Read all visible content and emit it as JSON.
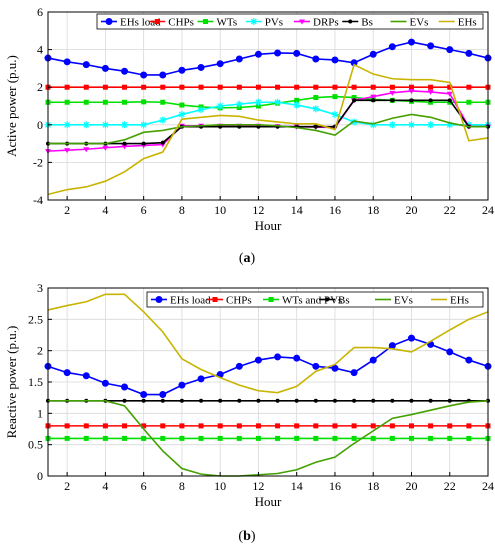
{
  "panels": [
    {
      "label": "(a)",
      "chart_data": {
        "type": "line",
        "xlabel": "Hour",
        "ylabel": "Active power (p.u.)",
        "xlim": [
          1,
          24
        ],
        "ylim": [
          -4,
          6
        ],
        "xticks": [
          2,
          4,
          6,
          8,
          10,
          12,
          14,
          16,
          18,
          20,
          22,
          24
        ],
        "yticks": [
          -4,
          -2,
          0,
          2,
          4,
          6
        ],
        "grid": true,
        "legend": "top",
        "x": [
          1,
          2,
          3,
          4,
          5,
          6,
          7,
          8,
          9,
          10,
          11,
          12,
          13,
          14,
          15,
          16,
          17,
          18,
          19,
          20,
          21,
          22,
          23,
          24
        ],
        "series": [
          {
            "name": "EHs load",
            "color": "#0000ff",
            "marker": "circle",
            "values": [
              3.55,
              3.35,
              3.2,
              3.0,
              2.85,
              2.65,
              2.65,
              2.9,
              3.05,
              3.25,
              3.5,
              3.75,
              3.82,
              3.8,
              3.5,
              3.45,
              3.3,
              3.75,
              4.15,
              4.4,
              4.2,
              4.0,
              3.8,
              3.55
            ]
          },
          {
            "name": "CHPs",
            "color": "#ff0000",
            "marker": "square",
            "values": [
              2,
              2,
              2,
              2,
              2,
              2,
              2,
              2,
              2,
              2,
              2,
              2,
              2,
              2,
              2,
              2,
              2,
              2,
              2,
              2,
              2,
              2,
              2,
              2
            ]
          },
          {
            "name": "WTs",
            "color": "#00e000",
            "marker": "square",
            "values": [
              1.2,
              1.2,
              1.2,
              1.2,
              1.2,
              1.22,
              1.2,
              1.05,
              0.95,
              0.9,
              0.92,
              1.0,
              1.15,
              1.3,
              1.45,
              1.5,
              1.45,
              1.35,
              1.3,
              1.25,
              1.2,
              1.2,
              1.2,
              1.2
            ]
          },
          {
            "name": "PVs",
            "color": "#00ffff",
            "marker": "star",
            "values": [
              0,
              0,
              0,
              0,
              0,
              0,
              0.25,
              0.55,
              0.8,
              1.0,
              1.1,
              1.2,
              1.2,
              1.05,
              0.85,
              0.55,
              0.15,
              0,
              0,
              0,
              0,
              0,
              0,
              0
            ]
          },
          {
            "name": "DRPs",
            "color": "#ff00ff",
            "marker": "triangle",
            "values": [
              -1.4,
              -1.35,
              -1.3,
              -1.22,
              -1.15,
              -1.1,
              -1.05,
              -0.05,
              -0.05,
              -0.05,
              -0.05,
              -0.05,
              -0.08,
              -0.1,
              -0.12,
              -0.15,
              1.3,
              1.5,
              1.7,
              1.8,
              1.75,
              1.65,
              -0.1,
              -0.1
            ]
          },
          {
            "name": "Bs",
            "color": "#000000",
            "marker": "dot",
            "values": [
              -1,
              -1,
              -1,
              -1,
              -1,
              -1,
              -0.95,
              -0.1,
              -0.1,
              -0.1,
              -0.1,
              -0.1,
              -0.1,
              -0.1,
              -0.1,
              -0.1,
              1.3,
              1.3,
              1.3,
              1.3,
              1.3,
              1.3,
              -0.1,
              -0.1
            ]
          },
          {
            "name": "EVs",
            "color": "#44a000",
            "marker": "none",
            "values": [
              -1,
              -1,
              -1,
              -1,
              -0.8,
              -0.4,
              -0.3,
              -0.1,
              -0.05,
              0.0,
              0.0,
              0.0,
              -0.05,
              -0.15,
              -0.3,
              -0.55,
              0.2,
              0.05,
              0.35,
              0.55,
              0.4,
              0.1,
              -0.1,
              -0.1
            ]
          },
          {
            "name": "EHs",
            "color": "#c8b400",
            "marker": "none",
            "values": [
              -3.7,
              -3.45,
              -3.3,
              -3.0,
              -2.5,
              -1.8,
              -1.45,
              0.3,
              0.4,
              0.5,
              0.45,
              0.25,
              0.15,
              0.05,
              0.05,
              -0.25,
              3.2,
              2.7,
              2.45,
              2.4,
              2.4,
              2.25,
              -0.85,
              -0.7
            ]
          }
        ]
      }
    },
    {
      "label": "(b)",
      "chart_data": {
        "type": "line",
        "xlabel": "Hour",
        "ylabel": "Reactive power (p.u.)",
        "xlim": [
          1,
          24
        ],
        "ylim": [
          0,
          3
        ],
        "xticks": [
          2,
          4,
          6,
          8,
          10,
          12,
          14,
          16,
          18,
          20,
          22,
          24
        ],
        "yticks": [
          0,
          0.5,
          1,
          1.5,
          2,
          2.5,
          3
        ],
        "grid": true,
        "legend": "top",
        "x": [
          1,
          2,
          3,
          4,
          5,
          6,
          7,
          8,
          9,
          10,
          11,
          12,
          13,
          14,
          15,
          16,
          17,
          18,
          19,
          20,
          21,
          22,
          23,
          24
        ],
        "series": [
          {
            "name": "EHs load",
            "color": "#0000ff",
            "marker": "circle",
            "values": [
              1.75,
              1.65,
              1.6,
              1.48,
              1.42,
              1.3,
              1.3,
              1.45,
              1.55,
              1.62,
              1.75,
              1.85,
              1.9,
              1.88,
              1.75,
              1.72,
              1.65,
              1.85,
              2.08,
              2.2,
              2.1,
              1.98,
              1.85,
              1.75
            ]
          },
          {
            "name": "CHPs",
            "color": "#ff0000",
            "marker": "square",
            "values": [
              0.8,
              0.8,
              0.8,
              0.8,
              0.8,
              0.8,
              0.8,
              0.8,
              0.8,
              0.8,
              0.8,
              0.8,
              0.8,
              0.8,
              0.8,
              0.8,
              0.8,
              0.8,
              0.8,
              0.8,
              0.8,
              0.8,
              0.8,
              0.8
            ]
          },
          {
            "name": "WTs and PVs",
            "color": "#00e000",
            "marker": "square",
            "values": [
              0.6,
              0.6,
              0.6,
              0.6,
              0.6,
              0.6,
              0.6,
              0.6,
              0.6,
              0.6,
              0.6,
              0.6,
              0.6,
              0.6,
              0.6,
              0.6,
              0.6,
              0.6,
              0.6,
              0.6,
              0.6,
              0.6,
              0.6,
              0.6
            ]
          },
          {
            "name": "Bs",
            "color": "#000000",
            "marker": "dot",
            "values": [
              1.2,
              1.2,
              1.2,
              1.2,
              1.2,
              1.2,
              1.2,
              1.2,
              1.2,
              1.2,
              1.2,
              1.2,
              1.2,
              1.2,
              1.2,
              1.2,
              1.2,
              1.2,
              1.2,
              1.2,
              1.2,
              1.2,
              1.2,
              1.2
            ]
          },
          {
            "name": "EVs",
            "color": "#44a000",
            "marker": "none",
            "values": [
              1.2,
              1.2,
              1.2,
              1.2,
              1.12,
              0.75,
              0.4,
              0.12,
              0.03,
              0.0,
              0.0,
              0.02,
              0.04,
              0.1,
              0.22,
              0.3,
              0.52,
              0.72,
              0.92,
              0.98,
              1.05,
              1.12,
              1.18,
              1.2
            ]
          },
          {
            "name": "EHs",
            "color": "#c8b400",
            "marker": "none",
            "values": [
              2.65,
              2.72,
              2.78,
              2.9,
              2.9,
              2.62,
              2.3,
              1.87,
              1.7,
              1.57,
              1.45,
              1.36,
              1.33,
              1.43,
              1.67,
              1.78,
              2.05,
              2.05,
              2.03,
              1.98,
              2.15,
              2.33,
              2.5,
              2.62
            ]
          }
        ]
      }
    }
  ]
}
